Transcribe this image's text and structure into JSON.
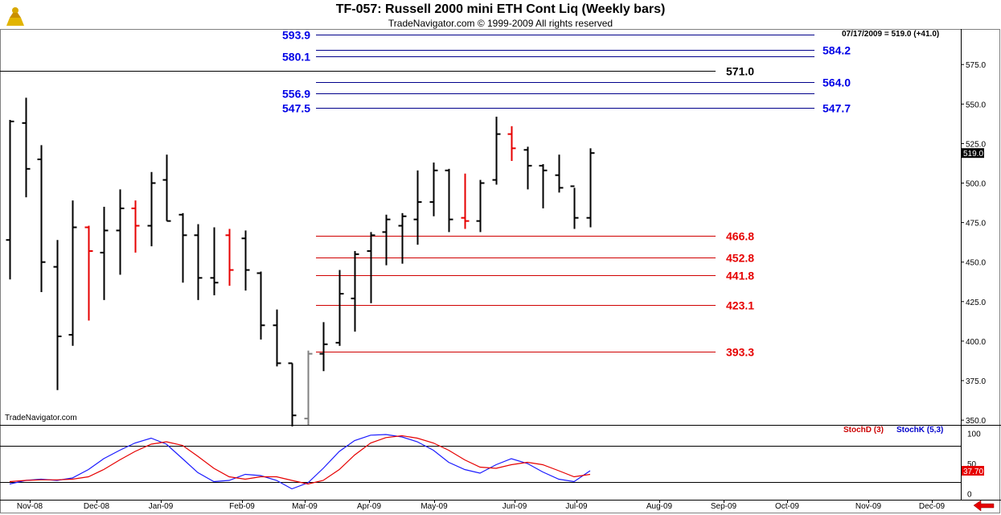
{
  "header": {
    "title": "TF-057:  Russell 2000 mini ETH Cont Liq  (Weekly bars)",
    "subtitle": "TradeNavigator.com © 1999-2009 All rights reserved",
    "last_stamp": "07/17/2009 = 519.0 (+41.0)",
    "watermark": "TradeNavigator.com"
  },
  "chart_data": [
    {
      "type": "ohlc",
      "name": "Russell 2000 mini ETH Cont Liq (Weekly bars)",
      "x_tick_labels": [
        "Nov-08",
        "Dec-08",
        "Jan-09",
        "Feb-09",
        "Mar-09",
        "Apr-09",
        "May-09",
        "Jun-09",
        "Jul-09",
        "Aug-09",
        "Sep-09",
        "Oct-09",
        "Nov-09",
        "Dec-09"
      ],
      "ylim": [
        347,
        597
      ],
      "y_ticks": [
        350,
        375,
        400,
        425,
        450,
        475,
        500,
        525,
        550,
        575
      ],
      "last_price": "519.0",
      "bars": [
        {
          "h": 540,
          "l": 439,
          "o": 464,
          "c": 539,
          "col": "black"
        },
        {
          "h": 554,
          "l": 491,
          "o": 538,
          "c": 509,
          "col": "black"
        },
        {
          "h": 524,
          "l": 431,
          "o": 515,
          "c": 450,
          "col": "black"
        },
        {
          "h": 464,
          "l": 369,
          "o": 447,
          "c": 403,
          "col": "black"
        },
        {
          "h": 489,
          "l": 397,
          "o": 404,
          "c": 472,
          "col": "black"
        },
        {
          "h": 473,
          "l": 413,
          "o": 472,
          "c": 457,
          "col": "red"
        },
        {
          "h": 485,
          "l": 426,
          "o": 456,
          "c": 470,
          "col": "black"
        },
        {
          "h": 496,
          "l": 442,
          "o": 470,
          "c": 484,
          "col": "black"
        },
        {
          "h": 489,
          "l": 456,
          "o": 484,
          "c": 473,
          "col": "red"
        },
        {
          "h": 507,
          "l": 460,
          "o": 473,
          "c": 500,
          "col": "black"
        },
        {
          "h": 518,
          "l": 476,
          "o": 502,
          "c": 476,
          "col": "black"
        },
        {
          "h": 481,
          "l": 437,
          "o": 480,
          "c": 467,
          "col": "black"
        },
        {
          "h": 474,
          "l": 426,
          "o": 467,
          "c": 440,
          "col": "black"
        },
        {
          "h": 472,
          "l": 429,
          "o": 440,
          "c": 437,
          "col": "black"
        },
        {
          "h": 471,
          "l": 435,
          "o": 467,
          "c": 445,
          "col": "red"
        },
        {
          "h": 470,
          "l": 432,
          "o": 465,
          "c": 445,
          "col": "black"
        },
        {
          "h": 444,
          "l": 401,
          "o": 443,
          "c": 410,
          "col": "black"
        },
        {
          "h": 420,
          "l": 384,
          "o": 410,
          "c": 386,
          "col": "black"
        },
        {
          "h": 386,
          "l": 346,
          "o": 386,
          "c": 353,
          "col": "black"
        },
        {
          "h": 394,
          "l": 347,
          "o": 351,
          "c": 392,
          "col": "gray"
        },
        {
          "h": 412,
          "l": 381,
          "o": 392,
          "c": 398,
          "col": "black"
        },
        {
          "h": 445,
          "l": 397,
          "o": 399,
          "c": 430,
          "col": "black"
        },
        {
          "h": 457,
          "l": 406,
          "o": 427,
          "c": 455,
          "col": "black"
        },
        {
          "h": 469,
          "l": 424,
          "o": 457,
          "c": 467,
          "col": "black"
        },
        {
          "h": 480,
          "l": 448,
          "o": 469,
          "c": 477,
          "col": "black"
        },
        {
          "h": 481,
          "l": 449,
          "o": 473,
          "c": 479,
          "col": "black"
        },
        {
          "h": 508,
          "l": 461,
          "o": 477,
          "c": 488,
          "col": "black"
        },
        {
          "h": 513,
          "l": 479,
          "o": 488,
          "c": 508,
          "col": "black"
        },
        {
          "h": 509,
          "l": 469,
          "o": 508,
          "c": 477,
          "col": "black"
        },
        {
          "h": 506,
          "l": 471,
          "o": 478,
          "c": 476,
          "col": "red"
        },
        {
          "h": 502,
          "l": 469,
          "o": 476,
          "c": 500,
          "col": "black"
        },
        {
          "h": 542,
          "l": 499,
          "o": 502,
          "c": 531,
          "col": "black"
        },
        {
          "h": 536,
          "l": 514,
          "o": 531,
          "c": 522,
          "col": "red"
        },
        {
          "h": 523,
          "l": 496,
          "o": 521,
          "c": 511,
          "col": "black"
        },
        {
          "h": 512,
          "l": 484,
          "o": 511,
          "c": 508,
          "col": "black"
        },
        {
          "h": 518,
          "l": 494,
          "o": 505,
          "c": 497,
          "col": "black"
        },
        {
          "h": 497,
          "l": 471,
          "o": 498,
          "c": 478,
          "col": "black"
        },
        {
          "h": 522,
          "l": 472,
          "o": 478,
          "c": 519,
          "col": "black"
        }
      ],
      "levels_red": [
        {
          "value": 466.8,
          "label": "466.8"
        },
        {
          "value": 452.8,
          "label": "452.8"
        },
        {
          "value": 441.8,
          "label": "441.8"
        },
        {
          "value": 423.1,
          "label": "423.1"
        },
        {
          "value": 393.3,
          "label": "393.3"
        }
      ],
      "levels_blue": [
        {
          "value": 593.9,
          "label": "593.9",
          "label_side": "left"
        },
        {
          "value": 584.2,
          "label": "584.2",
          "label_side": "right"
        },
        {
          "value": 580.1,
          "label": "580.1",
          "label_side": "left"
        },
        {
          "value": 564.0,
          "label": "564.0",
          "label_side": "right"
        },
        {
          "value": 556.9,
          "label": "556.9",
          "label_side": "left"
        },
        {
          "value": 547.7,
          "label": "547.7",
          "label_side": "right"
        },
        {
          "value": 547.5,
          "label": "547.5",
          "label_side": "left"
        }
      ],
      "level_black": {
        "value": 571.0,
        "label": "571.0"
      }
    },
    {
      "type": "line",
      "name": "Stochastic",
      "ylim": [
        -10,
        110
      ],
      "y_ticks": [
        0,
        50,
        100
      ],
      "bands": [
        20,
        80
      ],
      "legend": [
        {
          "name": "StochD (3)",
          "color": "#cc0000"
        },
        {
          "name": "StochK (5,3)",
          "color": "#0000cc"
        }
      ],
      "last_value": "37.70",
      "series": [
        {
          "name": "StochK (5,3)",
          "color": "#1a1aff",
          "values": [
            16,
            22,
            24,
            22,
            26,
            40,
            58,
            72,
            84,
            92,
            82,
            58,
            35,
            20,
            22,
            32,
            30,
            22,
            8,
            18,
            42,
            70,
            88,
            97,
            98,
            94,
            86,
            72,
            52,
            40,
            34,
            48,
            58,
            50,
            36,
            24,
            20,
            38
          ]
        },
        {
          "name": "StochD (3)",
          "color": "#e60000",
          "values": [
            20,
            22,
            23,
            23,
            24,
            28,
            40,
            56,
            70,
            82,
            86,
            80,
            62,
            42,
            28,
            24,
            28,
            28,
            22,
            16,
            22,
            40,
            64,
            84,
            93,
            96,
            92,
            84,
            72,
            56,
            44,
            42,
            48,
            52,
            48,
            38,
            28,
            32
          ]
        }
      ]
    }
  ]
}
